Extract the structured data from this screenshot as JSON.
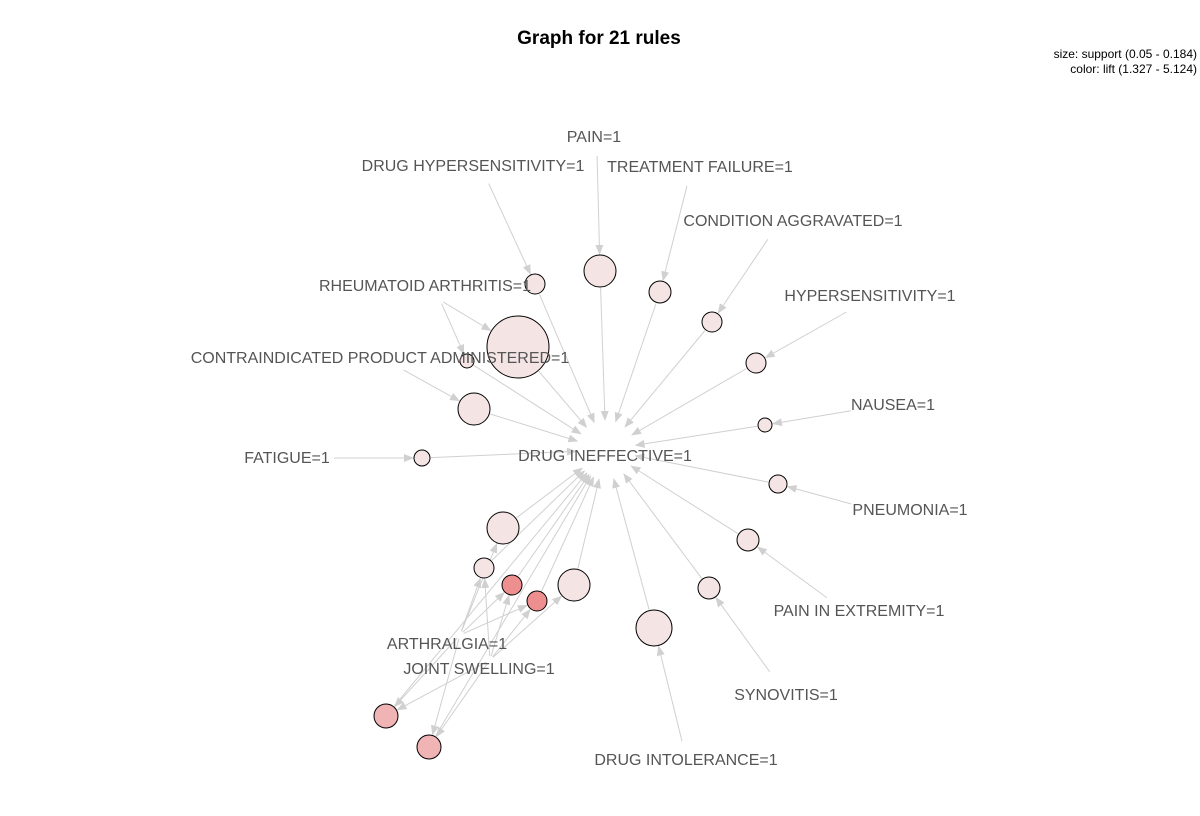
{
  "graph": {
    "title": "Graph for 21 rules",
    "legend": {
      "size": "size: support (0.05 - 0.184)",
      "color": "color: lift (1.327 - 5.124)"
    },
    "center_item": "DRUG INEFFECTIVE=1",
    "items": [
      {
        "id": "pain",
        "label": "PAIN=1"
      },
      {
        "id": "drug-hypersensitivity",
        "label": "DRUG HYPERSENSITIVITY=1"
      },
      {
        "id": "treatment-failure",
        "label": "TREATMENT FAILURE=1"
      },
      {
        "id": "condition-aggravated",
        "label": "CONDITION AGGRAVATED=1"
      },
      {
        "id": "rheumatoid-arthritis",
        "label": "RHEUMATOID ARTHRITIS=1"
      },
      {
        "id": "hypersensitivity",
        "label": "HYPERSENSITIVITY=1"
      },
      {
        "id": "contraindicated-product",
        "label": "CONTRAINDICATED PRODUCT ADMINISTERED=1"
      },
      {
        "id": "nausea",
        "label": "NAUSEA=1"
      },
      {
        "id": "fatigue",
        "label": "FATIGUE=1"
      },
      {
        "id": "drug-ineffective",
        "label": "DRUG INEFFECTIVE=1"
      },
      {
        "id": "pneumonia",
        "label": "PNEUMONIA=1"
      },
      {
        "id": "pain-in-extremity",
        "label": "PAIN IN EXTREMITY=1"
      },
      {
        "id": "arthralgia",
        "label": "ARTHRALGIA=1"
      },
      {
        "id": "joint-swelling",
        "label": "JOINT SWELLING=1"
      },
      {
        "id": "synovitis",
        "label": "SYNOVITIS=1"
      },
      {
        "id": "drug-intolerance",
        "label": "DRUG INTOLERANCE=1"
      }
    ],
    "colors": {
      "edge": "#d0d0d0",
      "label_text": "#555555",
      "rule_low_lift": "#f4e4e4",
      "rule_mid_lift": "#f0b4b4",
      "rule_high_lift": "#ee8f8f",
      "rule_stroke": "#000000"
    }
  }
}
